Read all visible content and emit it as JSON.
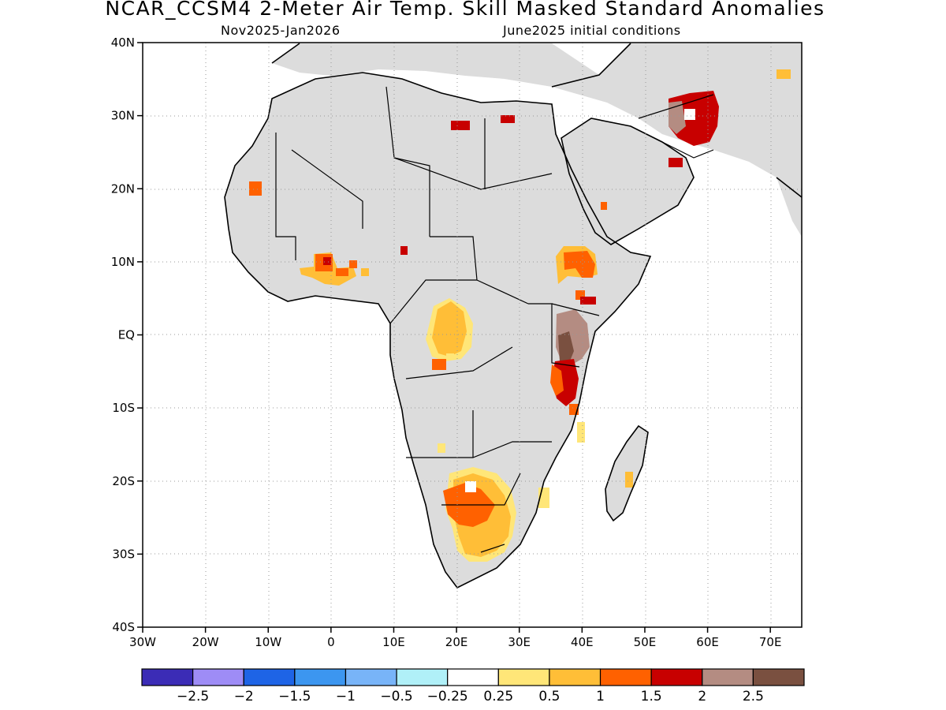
{
  "header": {
    "title": "NCAR_CCSM4 2-Meter Air Temp. Skill Masked Standard Anomalies",
    "period": "Nov2025-Jan2026",
    "init": "June2025 initial conditions"
  },
  "map": {
    "lon_range": [
      -30,
      75
    ],
    "lat_range": [
      -40,
      40
    ],
    "lat_ticks": [
      "40N",
      "30N",
      "20N",
      "10N",
      "EQ",
      "10S",
      "20S",
      "30S",
      "40S"
    ],
    "lon_ticks": [
      "30W",
      "20W",
      "10W",
      "0",
      "10E",
      "20E",
      "30E",
      "40E",
      "50E",
      "60E",
      "70E"
    ],
    "gridlines": "dotted",
    "land_color": "#dcdcdc",
    "ocean_color": "#ffffff"
  },
  "colorbar": {
    "colors": [
      "#3b2cb6",
      "#9e8cf6",
      "#1e64e6",
      "#3c96f0",
      "#78b4f8",
      "#b0f0f8",
      "#ffffff",
      "#ffe678",
      "#ffbe37",
      "#ff6100",
      "#c80000",
      "#b48c82",
      "#7a5040"
    ],
    "labels": [
      "-2.5",
      "-2",
      "-1.5",
      "-1",
      "-0.5",
      "-0.25",
      "0.25",
      "0.5",
      "1",
      "1.5",
      "2",
      "2.5"
    ]
  }
}
